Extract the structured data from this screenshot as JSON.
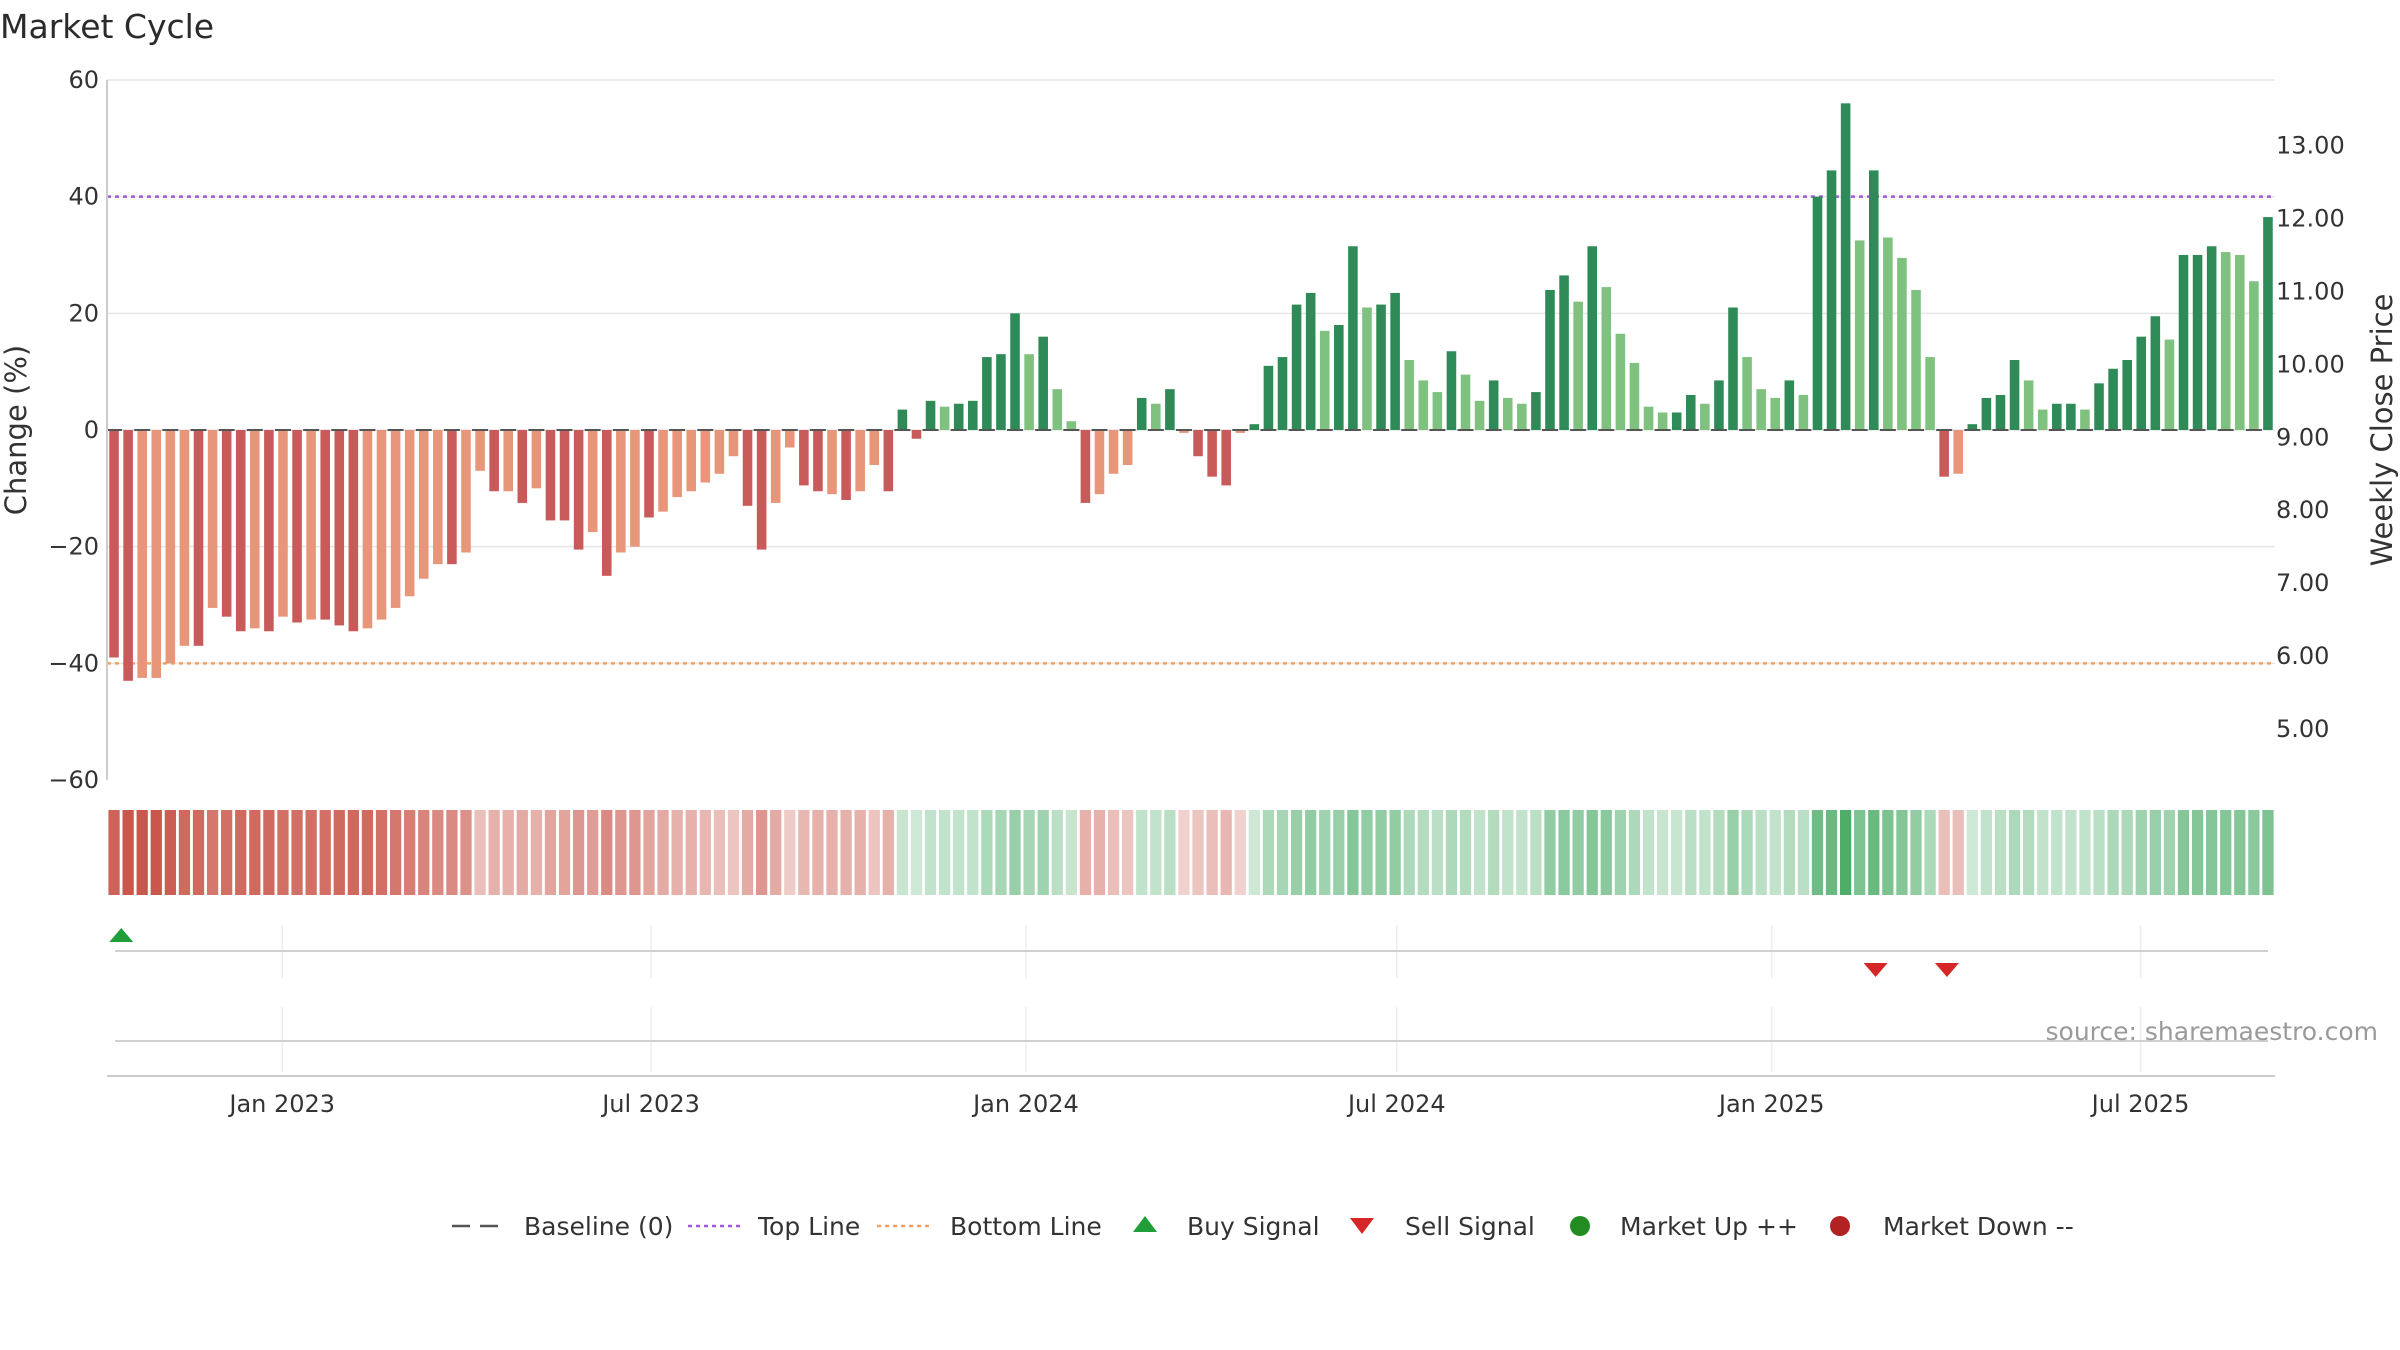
{
  "colors": {
    "down_strong": "#c85a5a",
    "down_light": "#e8967a",
    "up_strong": "#2e8b57",
    "up_light": "#7fc17f",
    "top_line": "#9b59d6",
    "bottom_line": "#f0a060",
    "baseline": "#555555",
    "buy": "#1f9e3a",
    "sell": "#d62728",
    "market_up": "#228b22",
    "market_down": "#b22222"
  },
  "chart_data": {
    "type": "bar",
    "title": "Market Cycle",
    "ylabel_left": "Change (%)",
    "ylabel_right": "Weekly Close Price",
    "ylim_left": [
      -60,
      60
    ],
    "ylim_right": [
      4.3,
      13.9
    ],
    "y_ticks_left": [
      "60",
      "40",
      "20",
      "0",
      "−20",
      "−40",
      "−60"
    ],
    "y_ticks_left_values": [
      60,
      40,
      20,
      0,
      -20,
      -40,
      -60
    ],
    "y_ticks_right": [
      "13.00",
      "12.00",
      "11.00",
      "10.00",
      "9.00",
      "8.00",
      "7.00",
      "6.00",
      "5.00"
    ],
    "y_ticks_right_values": [
      13,
      12,
      11,
      10,
      9,
      8,
      7,
      6,
      5
    ],
    "x_range": [
      "2022-10-07",
      "2025-09-05"
    ],
    "x_ticks": [
      {
        "label": "Jan 2023",
        "date": "2023-01-01"
      },
      {
        "label": "Jul 2023",
        "date": "2023-07-01"
      },
      {
        "label": "Jan 2024",
        "date": "2024-01-01"
      },
      {
        "label": "Jul 2024",
        "date": "2024-07-01"
      },
      {
        "label": "Jan 2025",
        "date": "2025-01-01"
      },
      {
        "label": "Jul 2025",
        "date": "2025-07-01"
      }
    ],
    "top_line": 40,
    "bottom_line": -40,
    "first_week": "2022-10-07",
    "values": [
      -39,
      -43,
      -42.5,
      -42.5,
      -40,
      -37,
      -37,
      -30.5,
      -32,
      -34.5,
      -34,
      -34.5,
      -32,
      -33,
      -32.5,
      -32.5,
      -33.5,
      -34.5,
      -34,
      -32.5,
      -30.5,
      -28.5,
      -25.5,
      -23,
      -23,
      -21,
      -7,
      -10.5,
      -10.5,
      -12.5,
      -10,
      -15.5,
      -15.5,
      -20.5,
      -17.5,
      -25,
      -21,
      -20,
      -15,
      -14,
      -11.5,
      -10.5,
      -9,
      -7.5,
      -4.5,
      -13,
      -20.5,
      -12.5,
      -3,
      -9.5,
      -10.5,
      -11,
      -12,
      -10.5,
      -6,
      -10.5,
      3.5,
      -1.5,
      5,
      4,
      4.5,
      5,
      12.5,
      13,
      20,
      13,
      16,
      7,
      1.5,
      -12.5,
      -11,
      -7.5,
      -6,
      5.5,
      4.5,
      7,
      -0.5,
      -4.5,
      -8,
      -9.5,
      -0.5,
      1,
      11,
      12.5,
      21.5,
      23.5,
      17,
      18,
      31.5,
      21,
      21.5,
      23.5,
      12,
      8.5,
      6.5,
      13.5,
      9.5,
      5,
      8.5,
      5.5,
      4.5,
      6.5,
      24,
      26.5,
      22,
      31.5,
      24.5,
      16.5,
      11.5,
      4,
      3,
      3,
      6,
      4.5,
      8.5,
      21,
      12.5,
      7,
      5.5,
      8.5,
      6,
      40,
      44.5,
      56,
      32.5,
      44.5,
      33,
      29.5,
      24,
      12.5,
      -8,
      -7.5,
      1,
      5.5,
      6,
      12,
      8.5,
      3.5,
      4.5,
      4.5,
      3.5,
      8,
      10.5,
      12,
      16,
      19.5,
      15.5,
      30,
      30,
      31.5,
      30.5,
      30,
      25.5,
      36.5
    ],
    "heat_strip": [
      -0.9,
      -1,
      -1,
      -1,
      -0.95,
      -0.85,
      -0.85,
      -0.75,
      -0.8,
      -0.85,
      -0.85,
      -0.85,
      -0.8,
      -0.8,
      -0.8,
      -0.8,
      -0.85,
      -0.85,
      -0.85,
      -0.8,
      -0.75,
      -0.7,
      -0.65,
      -0.6,
      -0.6,
      -0.55,
      -0.2,
      -0.3,
      -0.3,
      -0.35,
      -0.3,
      -0.4,
      -0.4,
      -0.5,
      -0.45,
      -0.6,
      -0.5,
      -0.5,
      -0.4,
      -0.35,
      -0.3,
      -0.3,
      -0.25,
      -0.2,
      -0.15,
      -0.35,
      -0.5,
      -0.35,
      -0.1,
      -0.25,
      -0.3,
      -0.3,
      -0.3,
      -0.3,
      -0.15,
      -0.3,
      0.1,
      0.05,
      0.15,
      0.15,
      0.15,
      0.15,
      0.3,
      0.35,
      0.45,
      0.35,
      0.4,
      0.2,
      0.1,
      -0.3,
      -0.3,
      -0.2,
      -0.15,
      0.15,
      0.15,
      0.2,
      -0.05,
      -0.15,
      -0.2,
      -0.25,
      -0.05,
      0.05,
      0.3,
      0.35,
      0.45,
      0.5,
      0.4,
      0.45,
      0.6,
      0.5,
      0.5,
      0.5,
      0.3,
      0.25,
      0.2,
      0.3,
      0.25,
      0.15,
      0.25,
      0.15,
      0.15,
      0.2,
      0.5,
      0.55,
      0.5,
      0.6,
      0.55,
      0.4,
      0.3,
      0.15,
      0.1,
      0.1,
      0.2,
      0.15,
      0.25,
      0.45,
      0.3,
      0.2,
      0.15,
      0.25,
      0.2,
      0.75,
      0.8,
      1,
      0.65,
      0.8,
      0.65,
      0.6,
      0.5,
      0.3,
      -0.2,
      -0.2,
      0.05,
      0.15,
      0.2,
      0.3,
      0.25,
      0.15,
      0.15,
      0.15,
      0.15,
      0.2,
      0.3,
      0.3,
      0.4,
      0.45,
      0.4,
      0.6,
      0.6,
      0.6,
      0.6,
      0.6,
      0.55,
      0.65
    ],
    "strength": [
      1,
      1,
      0,
      0,
      0,
      0,
      1,
      0,
      1,
      1,
      0,
      1,
      0,
      1,
      0,
      1,
      1,
      1,
      0,
      0,
      0,
      0,
      0,
      0,
      1,
      0,
      0,
      1,
      0,
      1,
      0,
      1,
      1,
      1,
      0,
      1,
      0,
      0,
      1,
      0,
      0,
      0,
      0,
      0,
      0,
      1,
      1,
      0,
      0,
      1,
      1,
      0,
      1,
      0,
      0,
      1,
      1,
      1,
      1,
      0,
      1,
      1,
      1,
      1,
      1,
      0,
      1,
      0,
      0,
      1,
      0,
      0,
      0,
      1,
      0,
      1,
      0,
      1,
      1,
      1,
      0,
      1,
      1,
      1,
      1,
      1,
      0,
      1,
      1,
      0,
      1,
      1,
      0,
      0,
      0,
      1,
      0,
      0,
      1,
      0,
      0,
      1,
      1,
      1,
      0,
      1,
      0,
      0,
      0,
      0,
      0,
      1,
      1,
      0,
      1,
      1,
      0,
      0,
      0,
      1,
      0,
      1,
      1,
      1,
      0,
      1,
      0,
      0,
      0,
      0,
      1,
      0,
      1,
      1,
      1,
      1,
      0,
      0,
      1,
      1,
      0,
      1,
      1,
      1,
      1,
      1,
      0,
      1,
      1,
      1,
      0,
      0,
      0,
      1
    ],
    "buy_signals": [
      "2022-10-14"
    ],
    "sell_signals": [
      "2025-02-21",
      "2025-03-28"
    ],
    "legend": [
      {
        "label": "Baseline (0)",
        "symbol": "dash"
      },
      {
        "label": "Top Line",
        "symbol": "dot-purple"
      },
      {
        "label": "Bottom Line",
        "symbol": "dot-orange"
      },
      {
        "label": "Buy Signal",
        "symbol": "triangle-up"
      },
      {
        "label": "Sell Signal",
        "symbol": "triangle-down"
      },
      {
        "label": "Market Up ++",
        "symbol": "circle-green"
      },
      {
        "label": "Market Down --",
        "symbol": "circle-red"
      }
    ],
    "legend_placement": "bottom-center",
    "grid": true
  },
  "source_text": "source: sharemaestro.com"
}
